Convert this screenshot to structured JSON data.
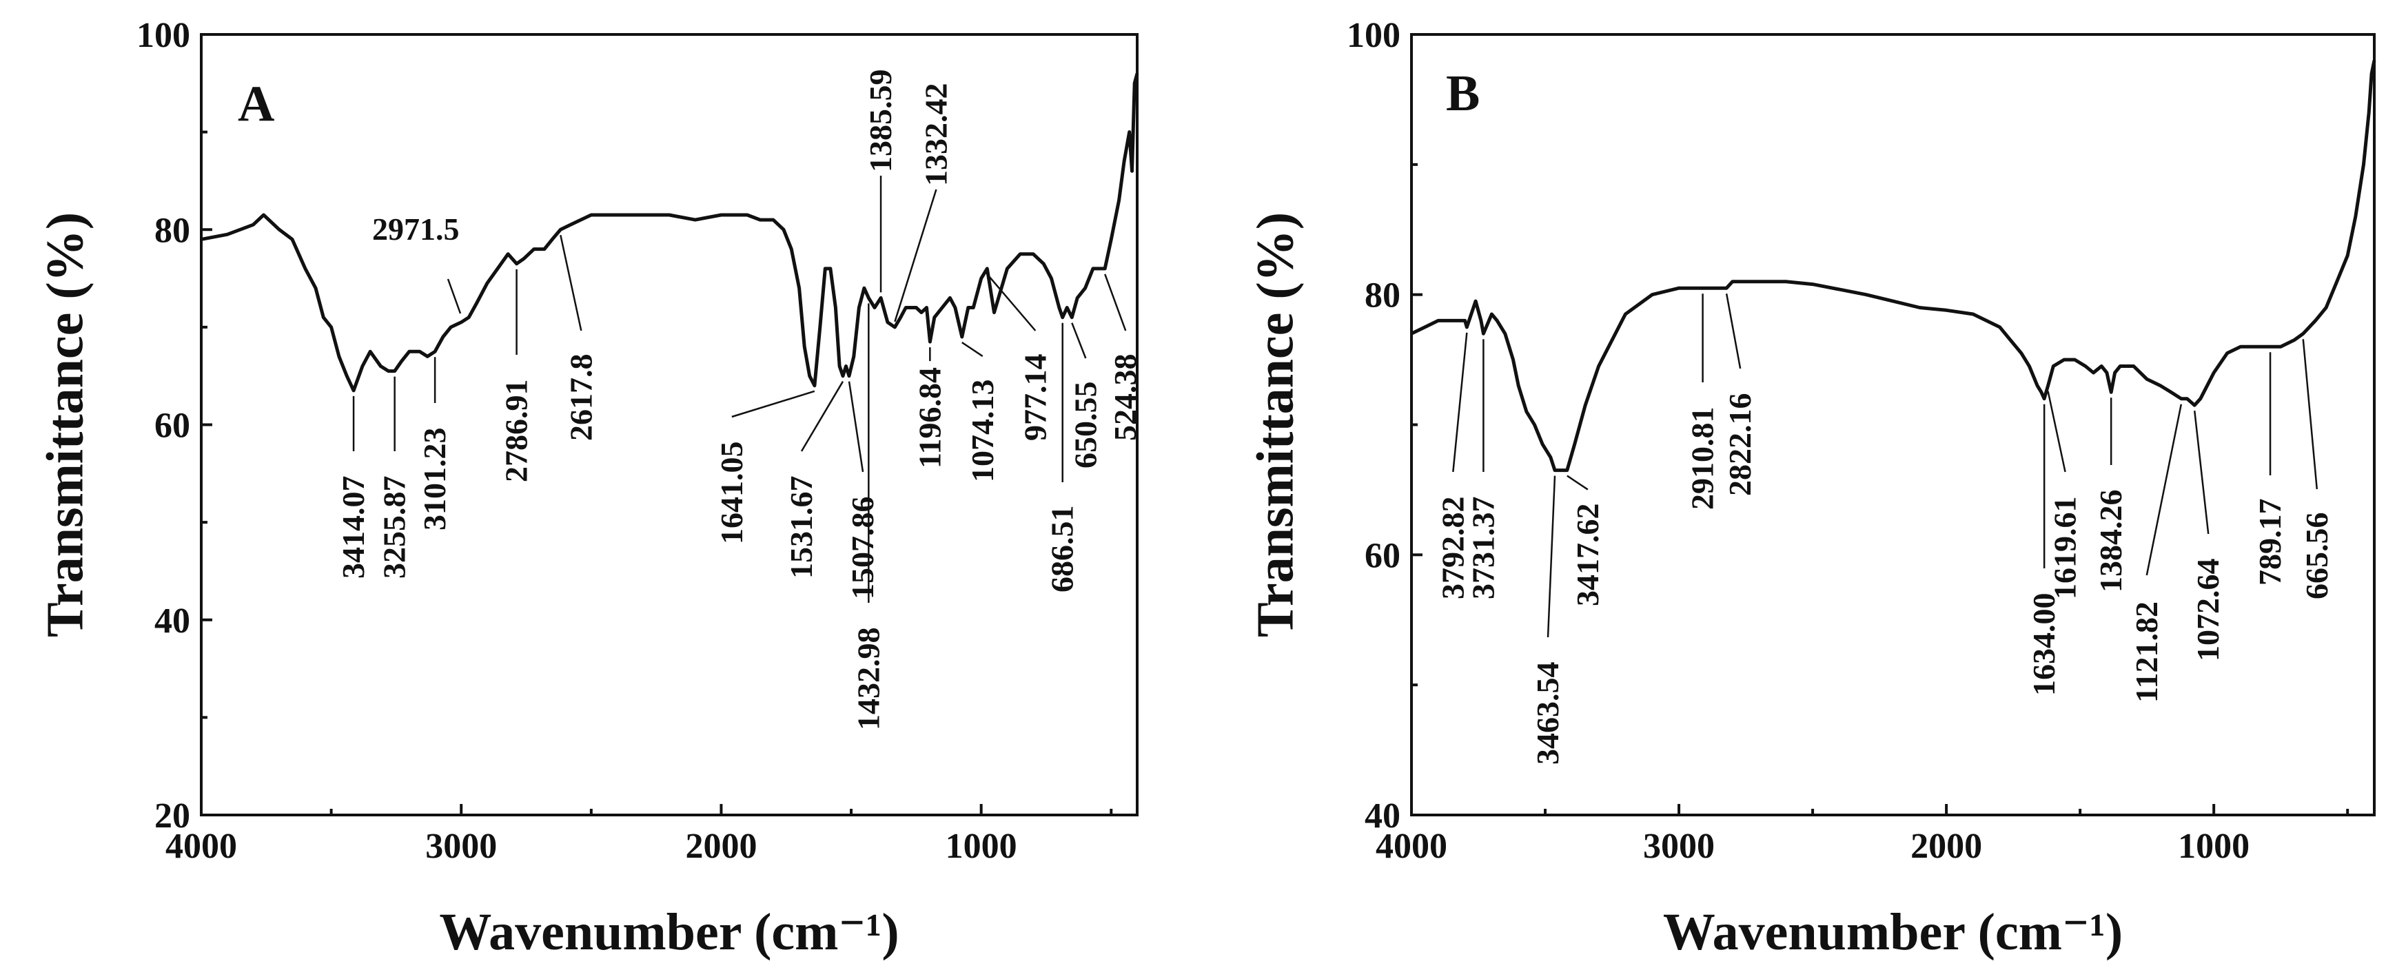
{
  "chart_data": [
    {
      "type": "line",
      "panel_label": "A",
      "xlabel": "Wavenumber (cm⁻¹)",
      "ylabel": "Transmittance (%)",
      "xlim": [
        4000,
        400
      ],
      "ylim": [
        20,
        100
      ],
      "x_ticks": [
        4000,
        3000,
        2000,
        1000
      ],
      "x_tick_labels": [
        "4000",
        "3000",
        "2000",
        "1000"
      ],
      "y_ticks": [
        20,
        40,
        60,
        80,
        100
      ],
      "y_tick_labels": [
        "20",
        "40",
        "60",
        "80",
        "100"
      ],
      "grid": false,
      "series": [
        {
          "name": "A",
          "x": [
            4000,
            3900,
            3800,
            3760,
            3700,
            3650,
            3600,
            3560,
            3530,
            3500,
            3470,
            3440,
            3414,
            3380,
            3350,
            3310,
            3280,
            3256,
            3230,
            3200,
            3160,
            3130,
            3101,
            3070,
            3040,
            3000,
            2971,
            2940,
            2900,
            2860,
            2820,
            2787,
            2760,
            2720,
            2680,
            2650,
            2618,
            2580,
            2540,
            2500,
            2400,
            2300,
            2200,
            2100,
            2000,
            1900,
            1850,
            1800,
            1760,
            1730,
            1700,
            1680,
            1660,
            1641,
            1620,
            1600,
            1580,
            1560,
            1545,
            1532,
            1520,
            1508,
            1490,
            1470,
            1450,
            1433,
            1410,
            1386,
            1360,
            1332,
            1310,
            1290,
            1270,
            1250,
            1230,
            1210,
            1197,
            1180,
            1150,
            1120,
            1100,
            1074,
            1050,
            1030,
            1000,
            977,
            950,
            900,
            850,
            800,
            760,
            730,
            700,
            687,
            670,
            651,
            630,
            600,
            570,
            550,
            524,
            500,
            470,
            450,
            430,
            420,
            410,
            400
          ],
          "y": [
            79,
            79.5,
            80.5,
            81.5,
            80,
            79,
            76,
            74,
            71,
            70,
            67,
            65,
            63.5,
            66,
            67.5,
            66,
            65.5,
            65.5,
            66.5,
            67.5,
            67.5,
            67,
            67.5,
            69,
            70,
            70.5,
            71,
            72.5,
            74.5,
            76,
            77.5,
            76.5,
            77,
            78,
            78,
            79,
            80,
            80.5,
            81,
            81.5,
            81.5,
            81.5,
            81.5,
            81,
            81.5,
            81.5,
            81,
            81,
            80,
            78,
            74,
            68,
            65,
            64,
            70,
            76,
            76,
            72,
            66,
            65,
            66,
            65,
            67,
            72,
            74,
            73,
            72,
            73,
            70.5,
            70,
            71,
            72,
            72,
            72,
            71.5,
            72,
            68.5,
            71,
            72,
            73,
            72,
            69,
            72,
            72,
            75,
            76,
            71.5,
            76,
            77.5,
            77.5,
            76.5,
            75,
            72,
            71,
            72,
            71,
            73,
            74,
            76,
            76,
            76,
            79,
            83,
            87,
            90,
            86,
            95,
            96
          ]
        }
      ],
      "annotations": [
        {
          "text": "3414.07",
          "x": 3414
        },
        {
          "text": "3255.87",
          "x": 3256
        },
        {
          "text": "3101.23",
          "x": 3101
        },
        {
          "text": "2971.5",
          "x": 2971
        },
        {
          "text": "2786.91",
          "x": 2787
        },
        {
          "text": "2617.8",
          "x": 2618
        },
        {
          "text": "1641.05",
          "x": 1641
        },
        {
          "text": "1531.67",
          "x": 1532
        },
        {
          "text": "1507.86",
          "x": 1508
        },
        {
          "text": "1432.98",
          "x": 1433
        },
        {
          "text": "1385.59",
          "x": 1386
        },
        {
          "text": "1332.42",
          "x": 1332
        },
        {
          "text": "1196.84",
          "x": 1197
        },
        {
          "text": "1074.13",
          "x": 1074
        },
        {
          "text": "977.14",
          "x": 977
        },
        {
          "text": "686.51",
          "x": 687
        },
        {
          "text": "650.55",
          "x": 651
        },
        {
          "text": "524.38",
          "x": 524
        }
      ]
    },
    {
      "type": "line",
      "panel_label": "B",
      "xlabel": "Wavenumber (cm⁻¹)",
      "ylabel": "Transmittance (%)",
      "xlim": [
        4000,
        400
      ],
      "ylim": [
        40,
        100
      ],
      "x_ticks": [
        4000,
        3000,
        2000,
        1000
      ],
      "x_tick_labels": [
        "4000",
        "3000",
        "2000",
        "1000"
      ],
      "y_ticks": [
        40,
        60,
        80,
        100
      ],
      "y_tick_labels": [
        "40",
        "60",
        "80",
        "100"
      ],
      "grid": false,
      "series": [
        {
          "name": "B",
          "x": [
            4000,
            3950,
            3900,
            3850,
            3800,
            3793,
            3760,
            3740,
            3731,
            3700,
            3680,
            3650,
            3620,
            3600,
            3570,
            3540,
            3510,
            3480,
            3464,
            3440,
            3418,
            3390,
            3350,
            3300,
            3200,
            3100,
            3000,
            2950,
            2911,
            2870,
            2840,
            2822,
            2800,
            2700,
            2600,
            2500,
            2400,
            2300,
            2200,
            2100,
            2000,
            1900,
            1800,
            1760,
            1720,
            1690,
            1660,
            1645,
            1634,
            1620,
            1600,
            1560,
            1520,
            1480,
            1450,
            1420,
            1400,
            1384,
            1370,
            1350,
            1300,
            1250,
            1200,
            1160,
            1122,
            1100,
            1072,
            1050,
            1000,
            950,
            900,
            850,
            800,
            789,
            750,
            700,
            666,
            620,
            580,
            540,
            500,
            470,
            440,
            420,
            410,
            400
          ],
          "y": [
            77,
            77.5,
            78,
            78,
            78,
            77.5,
            79.5,
            78,
            77,
            78.5,
            78,
            77,
            75,
            73,
            71,
            70,
            68.5,
            67.5,
            66.5,
            66.5,
            66.5,
            68.5,
            71.5,
            74.5,
            78.5,
            80,
            80.5,
            80.5,
            80.5,
            80.5,
            80.5,
            80.5,
            81,
            81,
            81,
            80.8,
            80.4,
            80,
            79.5,
            79,
            78.8,
            78.5,
            77.5,
            76.5,
            75.5,
            74.5,
            73,
            72.5,
            72,
            73,
            74.5,
            75,
            75,
            74.5,
            74,
            74.5,
            74,
            72.5,
            74,
            74.5,
            74.5,
            73.5,
            73,
            72.5,
            72,
            72,
            71.5,
            72,
            74,
            75.5,
            76,
            76,
            76,
            76,
            76,
            76.5,
            77,
            78,
            79,
            81,
            83,
            86,
            90,
            94,
            97,
            98
          ]
        }
      ],
      "annotations": [
        {
          "text": "3792.82",
          "x": 3793
        },
        {
          "text": "3731.37",
          "x": 3731
        },
        {
          "text": "3463.54",
          "x": 3464
        },
        {
          "text": "3417.62",
          "x": 3418
        },
        {
          "text": "2910.81",
          "x": 2911
        },
        {
          "text": "2822.16",
          "x": 2822
        },
        {
          "text": "1634.00",
          "x": 1634
        },
        {
          "text": "1619.61",
          "x": 1620
        },
        {
          "text": "1384.26",
          "x": 1384
        },
        {
          "text": "1121.82",
          "x": 1122
        },
        {
          "text": "1072.64",
          "x": 1072
        },
        {
          "text": "789.17",
          "x": 789
        },
        {
          "text": "665.56",
          "x": 666
        }
      ]
    }
  ]
}
